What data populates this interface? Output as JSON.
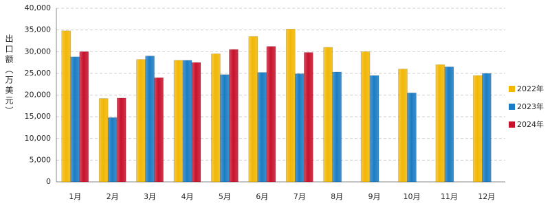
{
  "chart_data": {
    "type": "bar",
    "y_label": "出口额（万美元）",
    "categories": [
      "1月",
      "2月",
      "3月",
      "4月",
      "5月",
      "6月",
      "7月",
      "8月",
      "9月",
      "10月",
      "11月",
      "12月"
    ],
    "series": [
      {
        "name": "2022年",
        "color": "#f2b705",
        "values": [
          34800,
          19200,
          28200,
          28000,
          29500,
          33500,
          35200,
          31000,
          30000,
          26000,
          27000,
          24500
        ]
      },
      {
        "name": "2023年",
        "color": "#1b7cc4",
        "values": [
          28800,
          14800,
          29000,
          28000,
          24700,
          25200,
          24900,
          25300,
          24500,
          20500,
          26500,
          25000
        ]
      },
      {
        "name": "2024年",
        "color": "#c8122c",
        "values": [
          30000,
          19300,
          24000,
          27500,
          30500,
          31200,
          29800,
          null,
          null,
          null,
          null,
          null
        ]
      }
    ],
    "ylim": [
      0,
      40000
    ],
    "yticks": [
      0,
      {
        "value": 5000,
        "label": "5,000"
      },
      {
        "value": 10000,
        "label": "10,000"
      },
      {
        "value": 15000,
        "label": "15,000"
      },
      {
        "value": 20000,
        "label": "20,000"
      },
      {
        "value": 25000,
        "label": "25,000"
      },
      {
        "value": 30000,
        "label": "30,000"
      },
      {
        "value": 35000,
        "label": "35,000"
      },
      {
        "value": 40000,
        "label": "40,000"
      }
    ],
    "grid": true,
    "legend": "right"
  }
}
